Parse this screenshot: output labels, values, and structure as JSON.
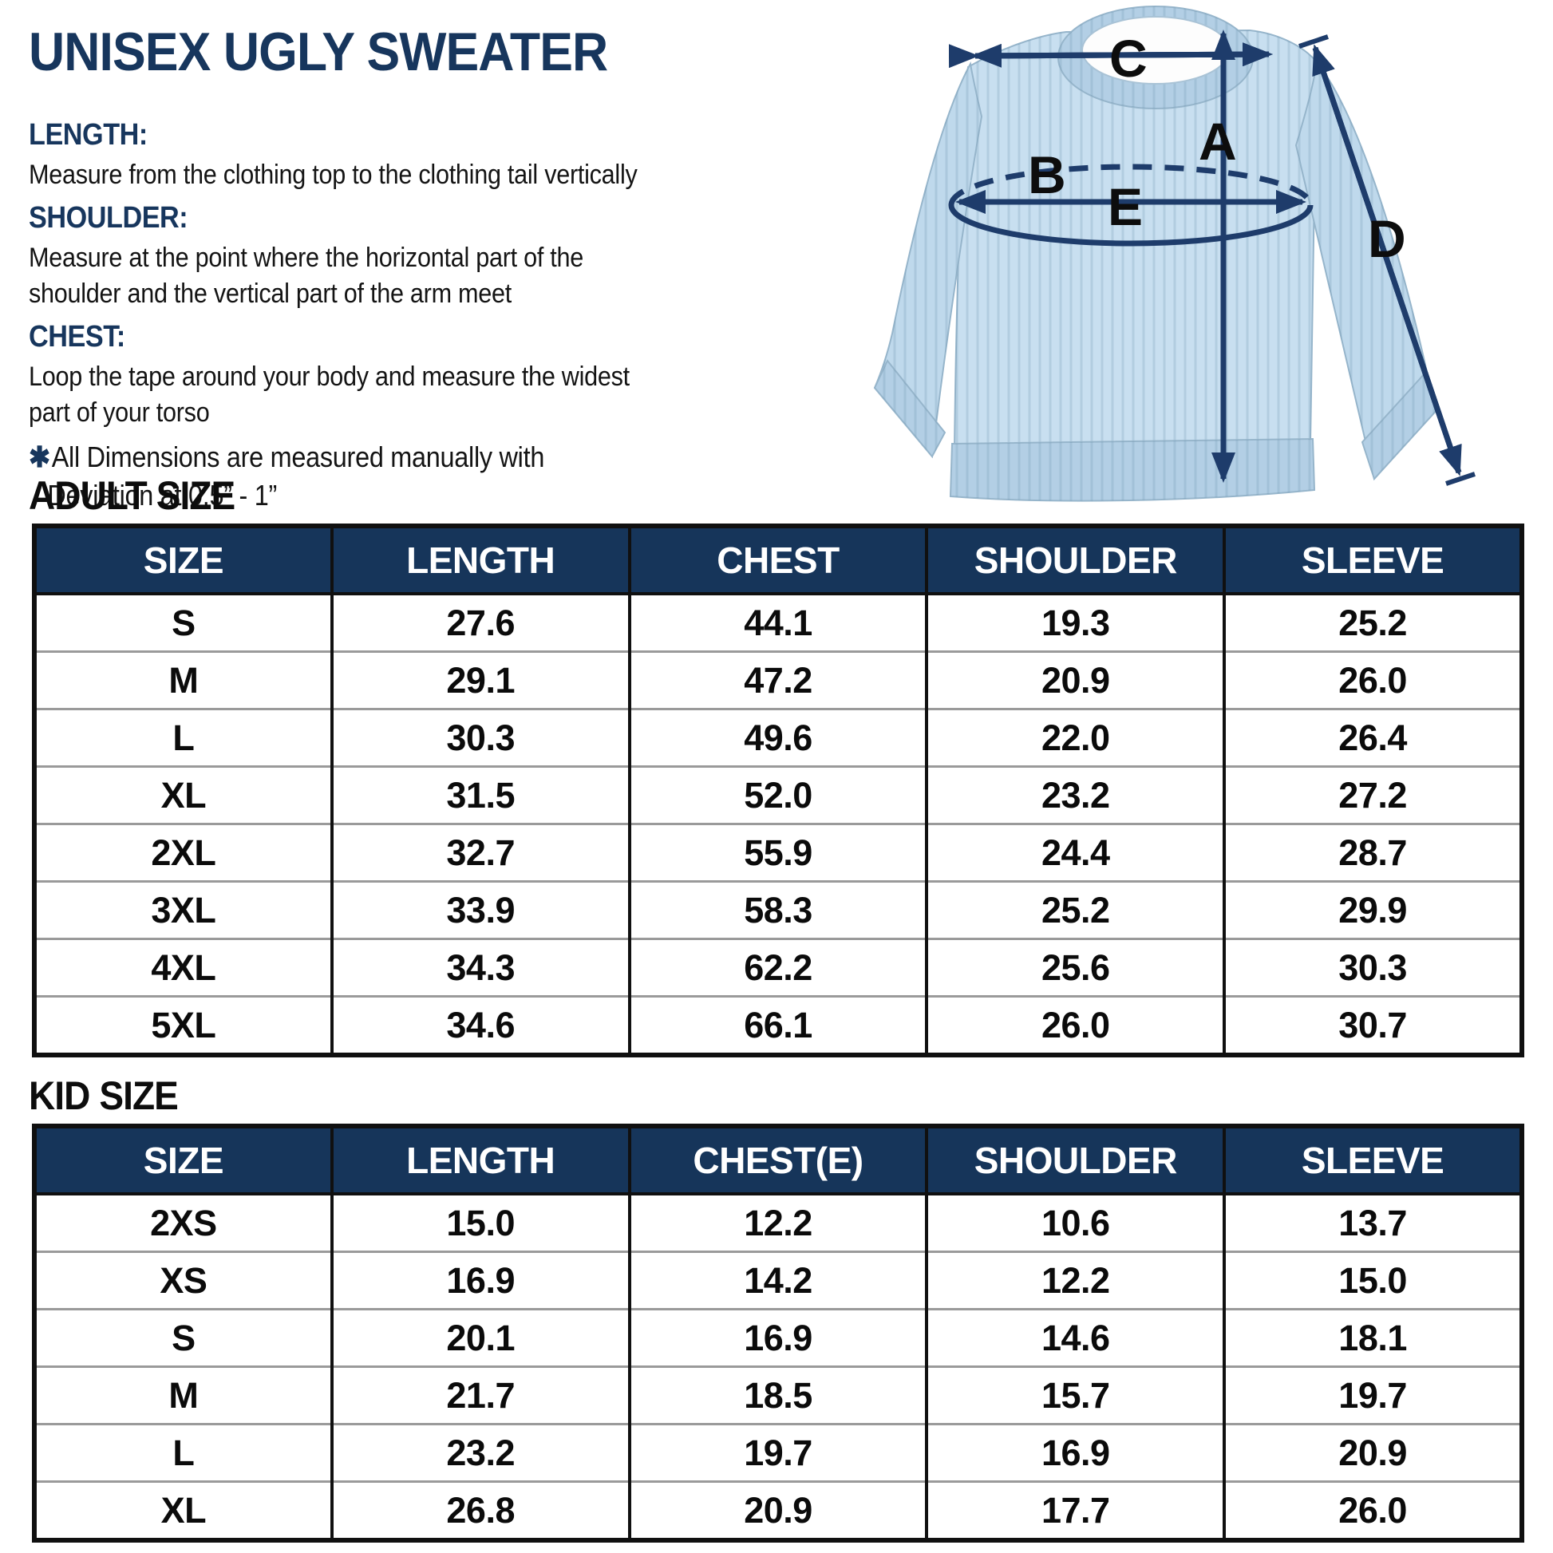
{
  "title": "UNISEX UGLY SWEATER",
  "instructions": [
    {
      "heading": "LENGTH:",
      "lines": [
        "Measure from the clothing top to the clothing tail vertically"
      ]
    },
    {
      "heading": "SHOULDER:",
      "lines": [
        "Measure at the point where the horizontal part of the",
        "shoulder and the vertical part of the arm meet"
      ]
    },
    {
      "heading": "CHEST:",
      "lines": [
        "Loop the tape around your body and measure the widest",
        "part of your torso"
      ]
    }
  ],
  "note": {
    "bullet": "✱",
    "line1": "All Dimensions are measured manually with",
    "line2": "Deviation at 0.5” - 1”"
  },
  "diagram": {
    "labels": {
      "A": "A",
      "B": "B",
      "C": "C",
      "D": "D",
      "E": "E"
    }
  },
  "adult": {
    "heading": "ADULT SIZE",
    "columns": [
      "SIZE",
      "LENGTH",
      "CHEST",
      "SHOULDER",
      "SLEEVE"
    ],
    "rows": [
      [
        "S",
        "27.6",
        "44.1",
        "19.3",
        "25.2"
      ],
      [
        "M",
        "29.1",
        "47.2",
        "20.9",
        "26.0"
      ],
      [
        "L",
        "30.3",
        "49.6",
        "22.0",
        "26.4"
      ],
      [
        "XL",
        "31.5",
        "52.0",
        "23.2",
        "27.2"
      ],
      [
        "2XL",
        "32.7",
        "55.9",
        "24.4",
        "28.7"
      ],
      [
        "3XL",
        "33.9",
        "58.3",
        "25.2",
        "29.9"
      ],
      [
        "4XL",
        "34.3",
        "62.2",
        "25.6",
        "30.3"
      ],
      [
        "5XL",
        "34.6",
        "66.1",
        "26.0",
        "30.7"
      ]
    ]
  },
  "kid": {
    "heading": "KID SIZE",
    "columns": [
      "SIZE",
      "LENGTH",
      "CHEST(E)",
      "SHOULDER",
      "SLEEVE"
    ],
    "rows": [
      [
        "2XS",
        "15.0",
        "12.2",
        "10.6",
        "13.7"
      ],
      [
        "XS",
        "16.9",
        "14.2",
        "12.2",
        "15.0"
      ],
      [
        "S",
        "20.1",
        "16.9",
        "14.6",
        "18.1"
      ],
      [
        "M",
        "21.7",
        "18.5",
        "15.7",
        "19.7"
      ],
      [
        "L",
        "23.2",
        "19.7",
        "16.9",
        "20.9"
      ],
      [
        "XL",
        "26.8",
        "20.9",
        "17.7",
        "26.0"
      ]
    ]
  },
  "colors": {
    "navy_text": "#17365d",
    "table_header_bg": "#16355a",
    "row_separator": "#9a9a9a",
    "border_black": "#101010",
    "sweater_body": "#c8dff0",
    "sweater_sleeve": "#bfd9ec",
    "sweater_trim": "#b3cfe5",
    "arrow_navy": "#1e3c6b"
  }
}
